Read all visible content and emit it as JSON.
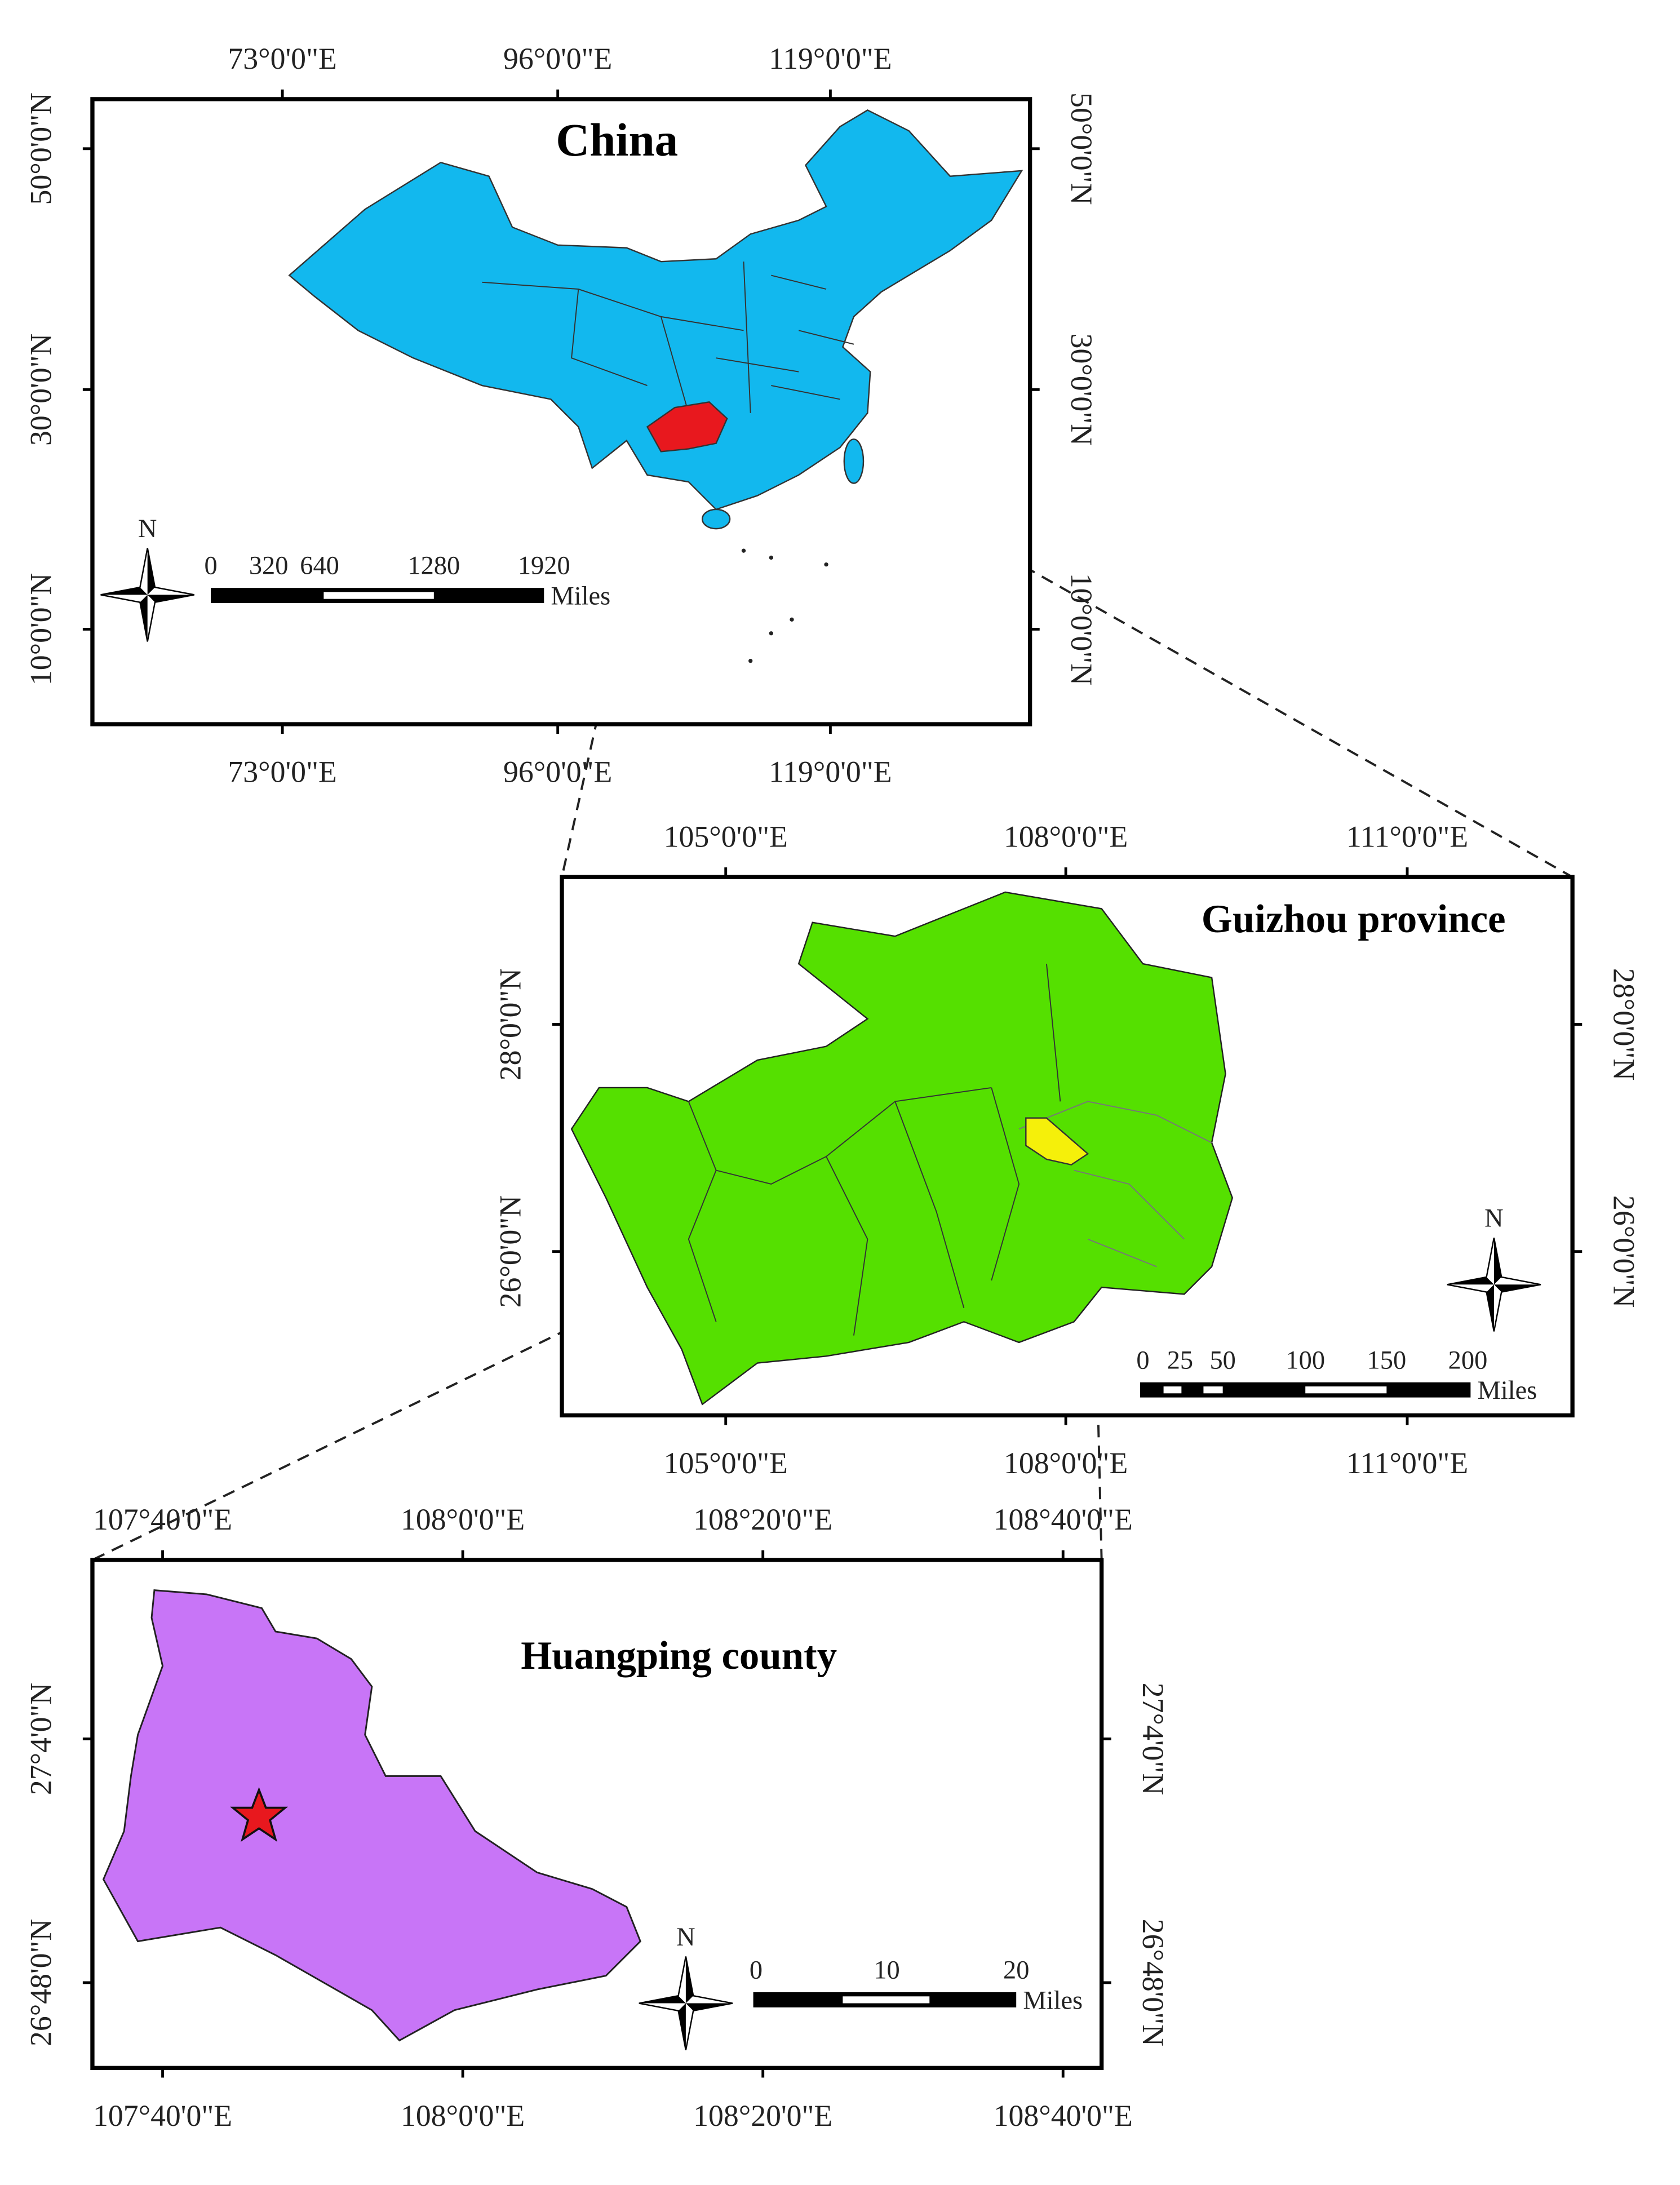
{
  "maps": [
    {
      "title": "China",
      "x_ticks": [
        "73°0'0\"E",
        "96°0'0\"E",
        "119°0'0\"E"
      ],
      "y_ticks": [
        "50°0'0\"N",
        "30°0'0\"N",
        "10°0'0\"N"
      ],
      "scale_labels": [
        "0",
        "320",
        "640",
        "1280",
        "1920"
      ],
      "scale_unit": "Miles",
      "north": "N"
    },
    {
      "title": "Guizhou province",
      "x_ticks": [
        "105°0'0\"E",
        "108°0'0\"E",
        "111°0'0\"E"
      ],
      "y_ticks": [
        "28°0'0\"N",
        "26°0'0\"N"
      ],
      "scale_labels": [
        "0",
        "25",
        "50",
        "100",
        "150",
        "200"
      ],
      "scale_unit": "Miles",
      "north": "N"
    },
    {
      "title": "Huangping county",
      "x_ticks": [
        "107°40'0\"E",
        "108°0'0\"E",
        "108°20'0\"E",
        "108°40'0\"E"
      ],
      "y_ticks": [
        "27°4'0\"N",
        "26°48'0\"N"
      ],
      "scale_labels": [
        "0",
        "10",
        "20"
      ],
      "scale_unit": "Miles",
      "north": "N"
    }
  ]
}
